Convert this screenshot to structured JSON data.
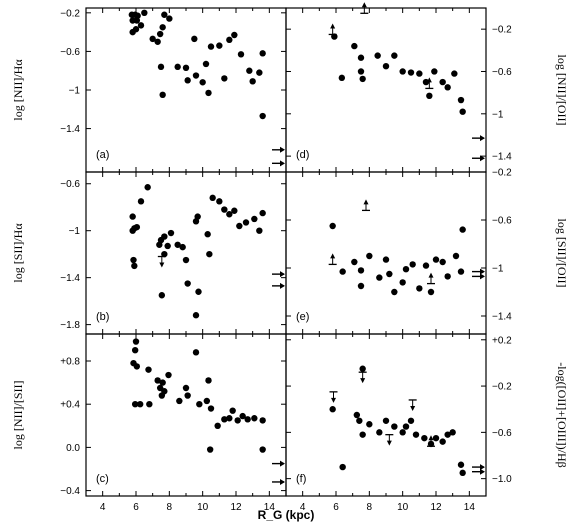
{
  "chart_data": [
    {
      "id": "a",
      "type": "scatter",
      "panel_label": "(a)",
      "ylabel": "log [NII]/Hα",
      "ylim": [
        -1.85,
        -0.15
      ],
      "yticks": [
        -0.2,
        -0.6,
        -1.0,
        -1.4
      ],
      "ytick_side": "left",
      "xlim": [
        3,
        15
      ],
      "points": [
        {
          "x": 5.75,
          "y": -0.22
        },
        {
          "x": 5.8,
          "y": -0.28
        },
        {
          "x": 5.95,
          "y": -0.22
        },
        {
          "x": 6.05,
          "y": -0.28
        },
        {
          "x": 6.1,
          "y": -0.23
        },
        {
          "x": 5.8,
          "y": -0.4
        },
        {
          "x": 6.0,
          "y": -0.37
        },
        {
          "x": 6.3,
          "y": -0.33
        },
        {
          "x": 6.5,
          "y": -0.2
        },
        {
          "x": 7.0,
          "y": -0.47
        },
        {
          "x": 7.3,
          "y": -0.5
        },
        {
          "x": 7.45,
          "y": -0.42
        },
        {
          "x": 7.6,
          "y": -0.35
        },
        {
          "x": 7.7,
          "y": -0.22
        },
        {
          "x": 8.0,
          "y": -0.26
        },
        {
          "x": 7.5,
          "y": -0.76
        },
        {
          "x": 7.6,
          "y": -1.05
        },
        {
          "x": 8.5,
          "y": -0.76
        },
        {
          "x": 9.0,
          "y": -0.77
        },
        {
          "x": 9.1,
          "y": -0.9
        },
        {
          "x": 9.5,
          "y": -0.47
        },
        {
          "x": 9.6,
          "y": -0.85
        },
        {
          "x": 10.0,
          "y": -0.92
        },
        {
          "x": 10.2,
          "y": -0.73
        },
        {
          "x": 10.35,
          "y": -1.03
        },
        {
          "x": 10.5,
          "y": -0.55
        },
        {
          "x": 11.0,
          "y": -0.54
        },
        {
          "x": 11.3,
          "y": -0.88
        },
        {
          "x": 11.6,
          "y": -0.48
        },
        {
          "x": 11.9,
          "y": -0.43
        },
        {
          "x": 12.3,
          "y": -0.63
        },
        {
          "x": 12.8,
          "y": -0.8
        },
        {
          "x": 13.0,
          "y": -0.91
        },
        {
          "x": 13.4,
          "y": -0.82
        },
        {
          "x": 13.6,
          "y": -0.62
        },
        {
          "x": 13.6,
          "y": -1.27
        }
      ],
      "limits": [],
      "arrows": [
        -1.62,
        -1.76
      ]
    },
    {
      "id": "b",
      "type": "scatter",
      "panel_label": "(b)",
      "ylabel": "log [SII]/Hα",
      "ylim": [
        -1.88,
        -0.5
      ],
      "yticks": [
        -0.6,
        -1.0,
        -1.4,
        -1.8
      ],
      "ytick_side": "left",
      "xlim": [
        3,
        15
      ],
      "points": [
        {
          "x": 5.8,
          "y": -0.88
        },
        {
          "x": 5.8,
          "y": -1.0
        },
        {
          "x": 5.9,
          "y": -0.98
        },
        {
          "x": 6.05,
          "y": -0.97
        },
        {
          "x": 5.85,
          "y": -1.25
        },
        {
          "x": 5.9,
          "y": -1.3
        },
        {
          "x": 6.3,
          "y": -0.75
        },
        {
          "x": 6.7,
          "y": -0.63
        },
        {
          "x": 7.4,
          "y": -1.12
        },
        {
          "x": 7.5,
          "y": -1.08
        },
        {
          "x": 7.55,
          "y": -1.55
        },
        {
          "x": 7.7,
          "y": -1.2
        },
        {
          "x": 7.7,
          "y": -1.05
        },
        {
          "x": 7.9,
          "y": -1.13
        },
        {
          "x": 8.1,
          "y": -1.02
        },
        {
          "x": 8.5,
          "y": -1.12
        },
        {
          "x": 8.8,
          "y": -1.14
        },
        {
          "x": 9.0,
          "y": -1.25
        },
        {
          "x": 9.1,
          "y": -1.45
        },
        {
          "x": 9.6,
          "y": -1.72
        },
        {
          "x": 9.7,
          "y": -0.88
        },
        {
          "x": 9.6,
          "y": -0.92
        },
        {
          "x": 9.75,
          "y": -1.52
        },
        {
          "x": 10.3,
          "y": -1.03
        },
        {
          "x": 10.4,
          "y": -1.2
        },
        {
          "x": 10.6,
          "y": -0.72
        },
        {
          "x": 11.0,
          "y": -0.75
        },
        {
          "x": 11.3,
          "y": -0.82
        },
        {
          "x": 11.6,
          "y": -0.86
        },
        {
          "x": 11.9,
          "y": -0.83
        },
        {
          "x": 12.2,
          "y": -0.96
        },
        {
          "x": 12.6,
          "y": -0.93
        },
        {
          "x": 13.1,
          "y": -0.9
        },
        {
          "x": 13.4,
          "y": -1.0
        },
        {
          "x": 13.6,
          "y": -0.85
        }
      ],
      "limits": [
        {
          "x": 7.55,
          "y": -1.22,
          "dir": "down"
        }
      ],
      "arrows": [
        -1.37,
        -1.47
      ]
    },
    {
      "id": "c",
      "type": "scatter",
      "panel_label": "(c)",
      "ylabel": "log [NII]/[SII]",
      "ylim": [
        -0.45,
        1.05
      ],
      "yticks": [
        0.8,
        0.4,
        0.0,
        -0.4
      ],
      "ytick_labels": [
        "+0.8",
        "+0.4",
        "0.0",
        "-0.4"
      ],
      "ytick_side": "left",
      "xlim": [
        3,
        15
      ],
      "points": [
        {
          "x": 5.85,
          "y": 0.78
        },
        {
          "x": 5.95,
          "y": 0.9
        },
        {
          "x": 6.0,
          "y": 0.98
        },
        {
          "x": 6.05,
          "y": 0.75
        },
        {
          "x": 5.95,
          "y": 0.4
        },
        {
          "x": 6.25,
          "y": 0.4
        },
        {
          "x": 6.75,
          "y": 0.72
        },
        {
          "x": 6.8,
          "y": 0.4
        },
        {
          "x": 7.3,
          "y": 0.62
        },
        {
          "x": 7.45,
          "y": 0.55
        },
        {
          "x": 7.6,
          "y": 0.6
        },
        {
          "x": 7.55,
          "y": 0.48
        },
        {
          "x": 7.7,
          "y": 0.52
        },
        {
          "x": 7.95,
          "y": 0.67
        },
        {
          "x": 8.6,
          "y": 0.43
        },
        {
          "x": 9.0,
          "y": 0.55
        },
        {
          "x": 9.1,
          "y": 0.48
        },
        {
          "x": 9.6,
          "y": 0.88
        },
        {
          "x": 9.8,
          "y": 0.4
        },
        {
          "x": 10.25,
          "y": 0.43
        },
        {
          "x": 10.35,
          "y": 0.62
        },
        {
          "x": 10.5,
          "y": 0.36
        },
        {
          "x": 10.45,
          "y": -0.02
        },
        {
          "x": 10.9,
          "y": 0.2
        },
        {
          "x": 11.3,
          "y": 0.26
        },
        {
          "x": 11.6,
          "y": 0.27
        },
        {
          "x": 11.8,
          "y": 0.34
        },
        {
          "x": 12.1,
          "y": 0.25
        },
        {
          "x": 12.4,
          "y": 0.29
        },
        {
          "x": 12.7,
          "y": 0.26
        },
        {
          "x": 13.1,
          "y": 0.27
        },
        {
          "x": 13.6,
          "y": 0.25
        },
        {
          "x": 13.6,
          "y": -0.02
        }
      ],
      "limits": [],
      "arrows": [
        -0.15,
        -0.32
      ]
    },
    {
      "id": "d",
      "type": "scatter",
      "panel_label": "(d)",
      "ylabel": "log [NII]/[OII]",
      "ylim": [
        -1.55,
        0.0
      ],
      "yticks": [
        -0.2,
        -0.6,
        -1.0,
        -1.4
      ],
      "ytick_side": "right",
      "xlim": [
        3,
        15
      ],
      "points": [
        {
          "x": 5.9,
          "y": -0.27
        },
        {
          "x": 6.35,
          "y": -0.66
        },
        {
          "x": 7.1,
          "y": -0.36
        },
        {
          "x": 7.5,
          "y": -0.47
        },
        {
          "x": 7.5,
          "y": -0.6
        },
        {
          "x": 7.6,
          "y": -0.67
        },
        {
          "x": 8.5,
          "y": -0.45
        },
        {
          "x": 9.0,
          "y": -0.55
        },
        {
          "x": 9.5,
          "y": -0.45
        },
        {
          "x": 10.0,
          "y": -0.6
        },
        {
          "x": 10.5,
          "y": -0.61
        },
        {
          "x": 11.0,
          "y": -0.62
        },
        {
          "x": 11.4,
          "y": -0.7
        },
        {
          "x": 11.6,
          "y": -0.83
        },
        {
          "x": 11.9,
          "y": -0.6
        },
        {
          "x": 12.4,
          "y": -0.7
        },
        {
          "x": 12.7,
          "y": -0.75
        },
        {
          "x": 13.1,
          "y": -0.62
        },
        {
          "x": 13.5,
          "y": -0.87
        },
        {
          "x": 13.6,
          "y": -0.98
        }
      ],
      "limits": [
        {
          "x": 5.8,
          "y": -0.25,
          "dir": "up"
        },
        {
          "x": 7.7,
          "y": -0.05,
          "dir": "up"
        },
        {
          "x": 11.6,
          "y": -0.76,
          "dir": "up"
        }
      ],
      "arrows": [
        -1.23,
        -1.42
      ]
    },
    {
      "id": "e",
      "type": "scatter",
      "panel_label": "(e)",
      "ylabel": "log [SII]/[OII]",
      "ylim": [
        -1.55,
        -0.2
      ],
      "yticks": [
        -0.2,
        -0.6,
        -1.0,
        -1.4
      ],
      "ytick_side": "right",
      "xlim": [
        3,
        15
      ],
      "points": [
        {
          "x": 5.8,
          "y": -0.65
        },
        {
          "x": 6.4,
          "y": -1.03
        },
        {
          "x": 7.1,
          "y": -0.95
        },
        {
          "x": 7.5,
          "y": -1.02
        },
        {
          "x": 7.5,
          "y": -1.15
        },
        {
          "x": 8.0,
          "y": -0.9
        },
        {
          "x": 8.6,
          "y": -1.08
        },
        {
          "x": 9.0,
          "y": -0.93
        },
        {
          "x": 9.2,
          "y": -1.05
        },
        {
          "x": 9.5,
          "y": -1.2
        },
        {
          "x": 10.0,
          "y": -1.12
        },
        {
          "x": 10.2,
          "y": -1.01
        },
        {
          "x": 10.6,
          "y": -0.97
        },
        {
          "x": 11.0,
          "y": -1.17
        },
        {
          "x": 11.4,
          "y": -0.98
        },
        {
          "x": 11.7,
          "y": -1.2
        },
        {
          "x": 12.0,
          "y": -0.93
        },
        {
          "x": 12.4,
          "y": -0.95
        },
        {
          "x": 12.7,
          "y": -1.07
        },
        {
          "x": 13.2,
          "y": -0.9
        },
        {
          "x": 13.5,
          "y": -1.03
        },
        {
          "x": 13.6,
          "y": -0.68
        }
      ],
      "limits": [
        {
          "x": 5.8,
          "y": -0.97,
          "dir": "up"
        },
        {
          "x": 7.8,
          "y": -0.52,
          "dir": "up"
        },
        {
          "x": 11.7,
          "y": -1.13,
          "dir": "up"
        }
      ],
      "arrows": [
        -1.03,
        -1.07
      ]
    },
    {
      "id": "f",
      "type": "scatter",
      "panel_label": "(f)",
      "ylabel": "-log([OII]+[OIII])/Hβ",
      "ylim": [
        -1.15,
        0.25
      ],
      "yticks": [
        0.2,
        -0.2,
        -0.6,
        -1.0
      ],
      "ytick_labels": [
        "+0.2",
        "-0.2",
        "-0.6",
        "-1.0"
      ],
      "ytick_side": "right",
      "xlim": [
        3,
        15
      ],
      "points": [
        {
          "x": 5.8,
          "y": -0.4
        },
        {
          "x": 6.4,
          "y": -0.9
        },
        {
          "x": 7.25,
          "y": -0.45
        },
        {
          "x": 7.4,
          "y": -0.5
        },
        {
          "x": 7.6,
          "y": -0.05
        },
        {
          "x": 7.6,
          "y": -0.62
        },
        {
          "x": 8.0,
          "y": -0.53
        },
        {
          "x": 8.6,
          "y": -0.6
        },
        {
          "x": 9.0,
          "y": -0.5
        },
        {
          "x": 9.5,
          "y": -0.55
        },
        {
          "x": 10.0,
          "y": -0.6
        },
        {
          "x": 10.2,
          "y": -0.55
        },
        {
          "x": 10.5,
          "y": -0.5
        },
        {
          "x": 10.8,
          "y": -0.62
        },
        {
          "x": 11.3,
          "y": -0.65
        },
        {
          "x": 11.7,
          "y": -0.7
        },
        {
          "x": 12.0,
          "y": -0.65
        },
        {
          "x": 12.4,
          "y": -0.68
        },
        {
          "x": 12.7,
          "y": -0.62
        },
        {
          "x": 13.0,
          "y": -0.6
        },
        {
          "x": 13.5,
          "y": -0.88
        },
        {
          "x": 13.6,
          "y": -0.95
        }
      ],
      "limits": [
        {
          "x": 5.85,
          "y": -0.25,
          "dir": "down"
        },
        {
          "x": 7.6,
          "y": -0.08,
          "dir": "down"
        },
        {
          "x": 9.2,
          "y": -0.62,
          "dir": "down"
        },
        {
          "x": 10.6,
          "y": -0.32,
          "dir": "down"
        },
        {
          "x": 11.7,
          "y": -0.72,
          "dir": "up"
        }
      ],
      "arrows": [
        -0.9,
        -0.94
      ]
    }
  ],
  "x_axis": {
    "label": "R_G (kpc)",
    "ticks": [
      4,
      6,
      8,
      10,
      12,
      14
    ]
  }
}
